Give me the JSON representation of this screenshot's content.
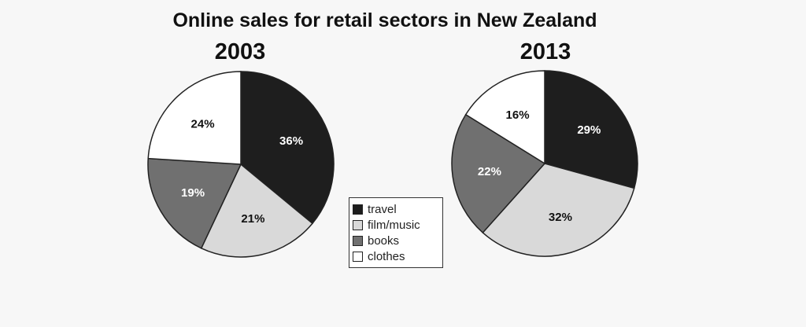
{
  "title": "Online sales for retail sectors in New Zealand",
  "legend": [
    {
      "label": "travel",
      "color": "#1e1e1e"
    },
    {
      "label": "film/music",
      "color": "#d9d9d9"
    },
    {
      "label": "books",
      "color": "#707070"
    },
    {
      "label": "clothes",
      "color": "#ffffff"
    }
  ],
  "chart_data": [
    {
      "type": "pie",
      "title": "2003",
      "categories": [
        "travel",
        "film/music",
        "books",
        "clothes"
      ],
      "values": [
        36,
        21,
        19,
        24
      ],
      "labels": [
        "36%",
        "21%",
        "19%",
        "24%"
      ]
    },
    {
      "type": "pie",
      "title": "2013",
      "categories": [
        "travel",
        "film/music",
        "books",
        "clothes"
      ],
      "values": [
        29,
        32,
        22,
        16
      ],
      "labels": [
        "29%",
        "32%",
        "22%",
        "16%"
      ]
    }
  ]
}
